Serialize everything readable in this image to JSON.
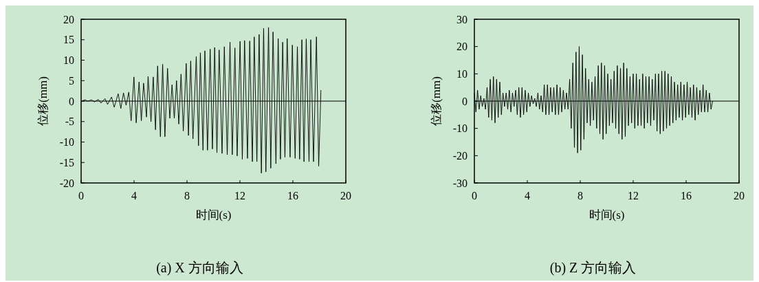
{
  "chart_data": [
    {
      "type": "line",
      "xlabel": "时间(s)",
      "ylabel": "位移(mm)",
      "annotations": [
        "(a) X 方向输入"
      ],
      "xlim": [
        0,
        20
      ],
      "ylim": [
        -20,
        20
      ],
      "xticks": [
        0,
        4,
        8,
        12,
        16,
        20
      ],
      "yticks": [
        -20,
        -15,
        -10,
        -5,
        0,
        5,
        10,
        15,
        20
      ],
      "grid": false,
      "marker": "none",
      "line_style": "solid",
      "ref_lines": [
        {
          "axis": "y",
          "value": 0,
          "color": "#000000"
        }
      ],
      "series": [
        {
          "color": "#000000",
          "x": [
            0,
            0.3,
            0.5,
            0.8,
            1.0,
            1.3,
            1.5,
            1.8,
            2.0,
            2.3,
            2.5,
            2.8,
            3.0,
            3.2,
            3.4,
            3.6,
            3.78,
            3.99,
            4.16,
            4.38,
            4.55,
            4.72,
            4.94,
            5.06,
            5.28,
            5.45,
            5.62,
            5.78,
            5.99,
            6.16,
            6.33,
            6.53,
            6.7,
            6.87,
            7.04,
            7.21,
            7.38,
            7.55,
            7.72,
            7.94,
            8.11,
            8.28,
            8.45,
            8.7,
            8.87,
            9.01,
            9.21,
            9.35,
            9.55,
            9.75,
            9.92,
            10.09,
            10.26,
            10.43,
            10.65,
            10.82,
            11.04,
            11.25,
            11.42,
            11.62,
            11.79,
            12.01,
            12.18,
            12.35,
            12.57,
            12.74,
            12.94,
            13.08,
            13.28,
            13.45,
            13.62,
            13.79,
            13.96,
            14.16,
            14.33,
            14.5,
            14.72,
            14.89,
            15.06,
            15.23,
            15.4,
            15.57,
            15.79,
            15.96,
            16.17,
            16.34,
            16.51,
            16.68,
            16.84,
            17.01,
            17.22,
            17.35,
            17.56,
            17.78,
            17.95,
            18.12
          ],
          "values": [
            0,
            0.3,
            0,
            0.3,
            -0.2,
            0.4,
            -0.5,
            0.6,
            -0.8,
            1,
            -1.5,
            1.8,
            -1.8,
            2,
            -1,
            2.2,
            -4.8,
            5.9,
            -5.3,
            4.7,
            -4.8,
            4.4,
            -3.9,
            6,
            -5,
            5.9,
            -7,
            8.6,
            -8.7,
            9,
            -8.7,
            8,
            -4.2,
            4,
            -4.2,
            5,
            -5.6,
            6.6,
            -7.3,
            9.2,
            -8.4,
            9.8,
            -9.2,
            10.9,
            -10.9,
            11.8,
            -12,
            12.3,
            -12,
            12.7,
            -11.7,
            13.1,
            -12.6,
            12.5,
            -12.8,
            13.3,
            -13.1,
            14.4,
            -13.1,
            13,
            -13.4,
            14.6,
            -14.2,
            14.8,
            -14,
            14.7,
            -14.8,
            15.7,
            -14.8,
            16.3,
            -17.6,
            17.8,
            -17.3,
            18,
            -16.4,
            16.9,
            -15.3,
            15.3,
            -14.2,
            14.4,
            -13.7,
            15.3,
            -13.7,
            13.7,
            -14,
            13.3,
            -14.2,
            15,
            -14.8,
            15.2,
            -14.8,
            15,
            -14.8,
            15.7,
            -15.9,
            2.7
          ]
        }
      ]
    },
    {
      "type": "line",
      "xlabel": "时间(s)",
      "ylabel": "位移(mm)",
      "annotations": [
        "(b) Z 方向输入"
      ],
      "xlim": [
        0,
        20
      ],
      "ylim": [
        -30,
        30
      ],
      "xticks": [
        0,
        4,
        8,
        12,
        16,
        20
      ],
      "yticks": [
        -30,
        -20,
        -10,
        0,
        10,
        20,
        30
      ],
      "grid": false,
      "marker": "none",
      "line_style": "solid",
      "ref_lines": [
        {
          "axis": "y",
          "value": 0,
          "color": "#000000"
        }
      ],
      "series": [
        {
          "color": "#000000",
          "x": [
            0,
            0.12,
            0.24,
            0.36,
            0.48,
            0.6,
            0.72,
            0.84,
            0.96,
            1.08,
            1.2,
            1.32,
            1.44,
            1.56,
            1.68,
            1.8,
            1.92,
            2.04,
            2.16,
            2.28,
            2.4,
            2.52,
            2.64,
            2.76,
            2.88,
            3.0,
            3.12,
            3.24,
            3.36,
            3.48,
            3.6,
            3.72,
            3.84,
            3.96,
            4.08,
            4.2,
            4.32,
            4.44,
            4.56,
            4.68,
            4.8,
            4.92,
            5.04,
            5.16,
            5.28,
            5.4,
            5.52,
            5.64,
            5.76,
            5.88,
            6.0,
            6.12,
            6.24,
            6.36,
            6.48,
            6.6,
            6.72,
            6.84,
            6.96,
            7.08,
            7.2,
            7.32,
            7.44,
            7.56,
            7.68,
            7.8,
            7.92,
            8.04,
            8.16,
            8.28,
            8.4,
            8.52,
            8.64,
            8.76,
            8.88,
            9.0,
            9.12,
            9.24,
            9.36,
            9.48,
            9.6,
            9.72,
            9.84,
            9.96,
            10.08,
            10.2,
            10.32,
            10.44,
            10.56,
            10.68,
            10.8,
            10.92,
            11.04,
            11.16,
            11.28,
            11.4,
            11.52,
            11.64,
            11.76,
            11.88,
            12.0,
            12.12,
            12.24,
            12.36,
            12.48,
            12.6,
            12.72,
            12.84,
            12.96,
            13.08,
            13.2,
            13.32,
            13.44,
            13.56,
            13.68,
            13.8,
            13.92,
            14.04,
            14.16,
            14.28,
            14.4,
            14.52,
            14.64,
            14.76,
            14.88,
            15.0,
            15.12,
            15.24,
            15.36,
            15.48,
            15.6,
            15.72,
            15.84,
            15.96,
            16.08,
            16.2,
            16.32,
            16.44,
            16.56,
            16.68,
            16.8,
            16.92,
            17.04,
            17.16,
            17.28,
            17.4,
            17.52,
            17.64,
            17.76,
            17.88,
            18.0
          ],
          "values": [
            3,
            -4,
            4,
            -3,
            2,
            -2,
            1,
            -3,
            5,
            -6,
            8,
            -7,
            9,
            -8,
            8,
            -6,
            7,
            -5,
            3,
            -2,
            3,
            -3,
            4,
            -4,
            3,
            -2,
            4,
            -5,
            5,
            -6,
            5,
            -5,
            4,
            -4,
            3,
            -2,
            2,
            -1,
            1,
            -2,
            3,
            -3,
            2,
            -4,
            6,
            -5,
            6,
            -5,
            5,
            -4,
            5,
            -5,
            6,
            -5,
            5,
            -4,
            4,
            -3,
            3,
            -3,
            8,
            -10,
            14,
            -17,
            18,
            -19,
            20,
            -18,
            17,
            -14,
            12,
            -8,
            8,
            -9,
            7,
            -7,
            9,
            -10,
            13,
            -12,
            14,
            -14,
            13,
            -12,
            10,
            -9,
            8,
            -8,
            11,
            -10,
            13,
            -12,
            12,
            -14,
            14,
            -13,
            12,
            -9,
            9,
            -8,
            10,
            -10,
            10,
            -9,
            8,
            -9,
            10,
            -10,
            9,
            -8,
            9,
            -9,
            8,
            -7,
            10,
            -11,
            10,
            -12,
            11,
            -11,
            11,
            -10,
            10,
            -9,
            9,
            -8,
            7,
            -7,
            6,
            -6,
            7,
            -7,
            6,
            -6,
            7,
            -5,
            5,
            -6,
            6,
            -7,
            5,
            -5,
            4,
            -4,
            6,
            -4,
            4,
            -4,
            3,
            -3,
            0
          ]
        }
      ]
    }
  ]
}
